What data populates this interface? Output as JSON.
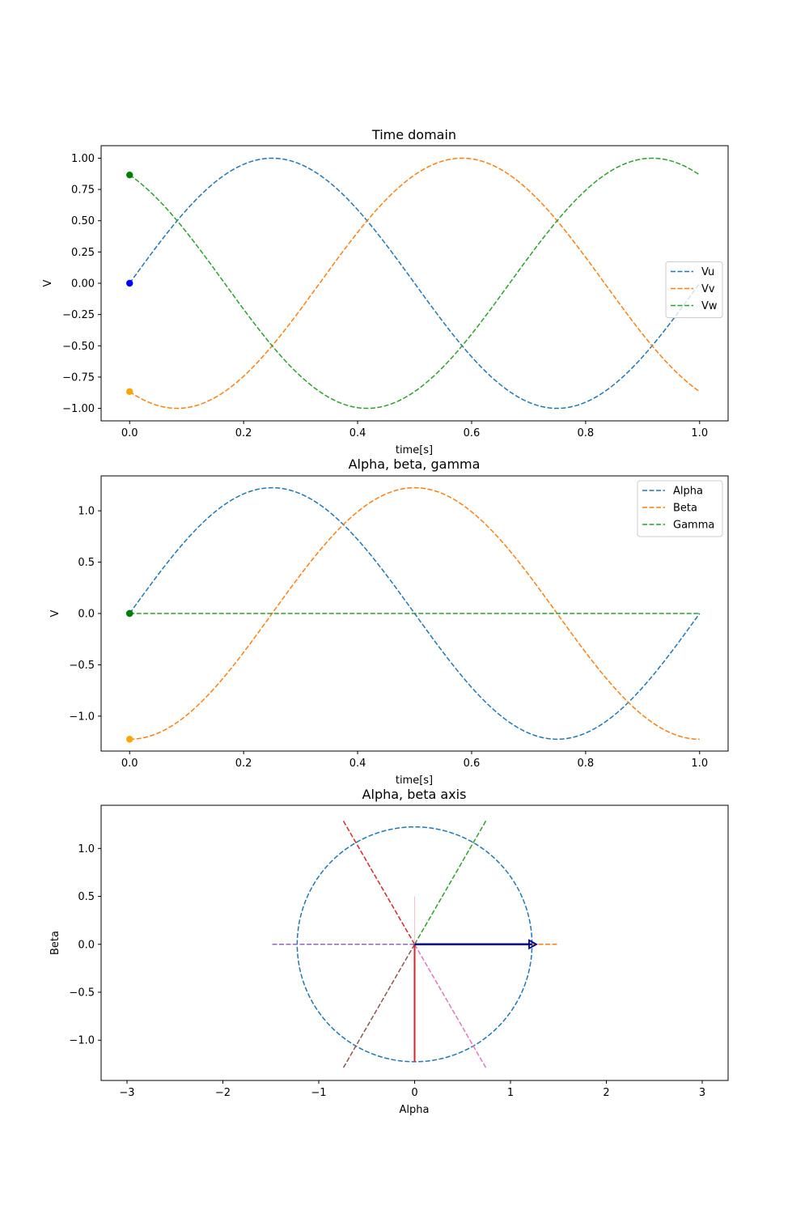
{
  "chart_data": [
    {
      "type": "line",
      "title": "Time domain",
      "xlabel": "time[s]",
      "ylabel": "V",
      "xlim": [
        -0.05,
        1.05
      ],
      "ylim": [
        -1.1,
        1.1
      ],
      "xticks": [
        0.0,
        0.2,
        0.4,
        0.6,
        0.8,
        1.0
      ],
      "xtick_labels": [
        "0.0",
        "0.2",
        "0.4",
        "0.6",
        "0.8",
        "1.0"
      ],
      "yticks": [
        1.0,
        0.75,
        0.5,
        0.25,
        0.0,
        -0.25,
        -0.5,
        -0.75,
        -1.0
      ],
      "ytick_labels": [
        "1.00",
        "0.75",
        "0.50",
        "0.25",
        "0.00",
        "−0.25",
        "−0.50",
        "−0.75",
        "−1.00"
      ],
      "grid": false,
      "legend_position": "center-right",
      "series": [
        {
          "name": "Vu",
          "color": "#1f77b4",
          "style": "dashed",
          "formula": "sin(2*pi*t)",
          "amplitude": 1.0,
          "phase_deg": 0
        },
        {
          "name": "Vv",
          "color": "#ff7f0e",
          "style": "dashed",
          "formula": "sin(2*pi*t - 120deg)",
          "amplitude": 1.0,
          "phase_deg": -120
        },
        {
          "name": "Vw",
          "color": "#2ca02c",
          "style": "dashed",
          "formula": "sin(2*pi*t + 120deg)",
          "amplitude": 1.0,
          "phase_deg": 120
        }
      ],
      "t_range": [
        0.0,
        1.0
      ],
      "markers": [
        {
          "x": 0.0,
          "y": 0.0,
          "color": "#0000ff"
        },
        {
          "x": 0.0,
          "y": -0.866,
          "color": "#ffa500"
        },
        {
          "x": 0.0,
          "y": 0.866,
          "color": "#008000"
        }
      ]
    },
    {
      "type": "line",
      "title": "Alpha, beta, gamma",
      "xlabel": "time[s]",
      "ylabel": "V",
      "xlim": [
        -0.05,
        1.05
      ],
      "ylim": [
        -1.34,
        1.34
      ],
      "xticks": [
        0.0,
        0.2,
        0.4,
        0.6,
        0.8,
        1.0
      ],
      "xtick_labels": [
        "0.0",
        "0.2",
        "0.4",
        "0.6",
        "0.8",
        "1.0"
      ],
      "yticks": [
        1.0,
        0.5,
        0.0,
        -0.5,
        -1.0
      ],
      "ytick_labels": [
        "1.0",
        "0.5",
        "0.0",
        "−0.5",
        "−1.0"
      ],
      "grid": false,
      "legend_position": "top-right",
      "series": [
        {
          "name": "Alpha",
          "color": "#1f77b4",
          "style": "dashed",
          "formula": "1.2247*sin(2*pi*t)",
          "amplitude": 1.2247,
          "phase_deg": 0
        },
        {
          "name": "Beta",
          "color": "#ff7f0e",
          "style": "dashed",
          "formula": "-1.2247*cos(2*pi*t)",
          "amplitude": 1.2247,
          "phase_deg": -90
        },
        {
          "name": "Gamma",
          "color": "#2ca02c",
          "style": "dashed",
          "formula": "0",
          "amplitude": 0.0,
          "phase_deg": 0
        }
      ],
      "t_range": [
        0.0,
        1.0
      ],
      "markers": [
        {
          "x": 0.0,
          "y": 0.0,
          "color": "#0000ff"
        },
        {
          "x": 0.0,
          "y": -1.2247,
          "color": "#ffa500"
        },
        {
          "x": 0.0,
          "y": 0.0,
          "color": "#008000"
        }
      ]
    },
    {
      "type": "line",
      "title": "Alpha, beta axis",
      "xlabel": "Alpha",
      "ylabel": "Beta",
      "xlim": [
        -3.27,
        3.27
      ],
      "ylim": [
        -1.42,
        1.45
      ],
      "xticks": [
        -3,
        -2,
        -1,
        0,
        1,
        2,
        3
      ],
      "xtick_labels": [
        "−3",
        "−2",
        "−1",
        "0",
        "1",
        "2",
        "3"
      ],
      "yticks": [
        1.0,
        0.5,
        0.0,
        -0.5,
        -1.0
      ],
      "ytick_labels": [
        "1.0",
        "0.5",
        "0.0",
        "−0.5",
        "−1.0"
      ],
      "grid": false,
      "circle": {
        "radius": 1.2247,
        "color": "#1f77b4",
        "style": "dashed"
      },
      "axis_lines": [
        {
          "x": [
            0,
            1.5
          ],
          "y": [
            0,
            0
          ],
          "color": "#ff7f0e",
          "style": "dashed"
        },
        {
          "x": [
            0,
            0.75
          ],
          "y": [
            0,
            1.299
          ],
          "color": "#2ca02c",
          "style": "dashed"
        },
        {
          "x": [
            0,
            -0.75
          ],
          "y": [
            0,
            1.299
          ],
          "color": "#d62728",
          "style": "dashed"
        },
        {
          "x": [
            0,
            -1.5
          ],
          "y": [
            0,
            0
          ],
          "color": "#9467bd",
          "style": "dashed"
        },
        {
          "x": [
            0,
            -0.75
          ],
          "y": [
            0,
            -1.299
          ],
          "color": "#8c564b",
          "style": "dashed"
        },
        {
          "x": [
            0,
            0.75
          ],
          "y": [
            0,
            -1.299
          ],
          "color": "#e377c2",
          "style": "dashed"
        }
      ],
      "vectors": [
        {
          "x": [
            0,
            0
          ],
          "y": [
            0,
            0.5
          ],
          "color": "#ffc0cb",
          "style": "solid",
          "width": 1
        },
        {
          "x": [
            0,
            0
          ],
          "y": [
            0,
            -1.2247
          ],
          "color": "#d62728",
          "style": "solid",
          "width": 2
        },
        {
          "x": [
            0,
            1.2247
          ],
          "y": [
            0,
            0
          ],
          "color": "#00008b",
          "style": "arrow",
          "width": 2.5
        }
      ]
    }
  ]
}
